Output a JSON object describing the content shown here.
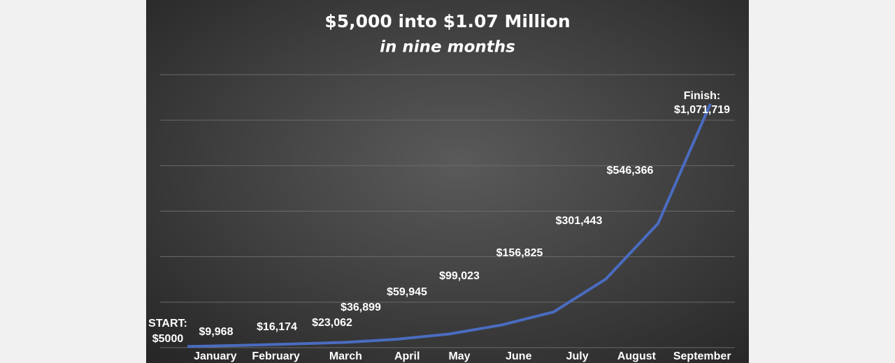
{
  "chart_data": {
    "type": "line",
    "title": "$5,000 into $1.07 Million",
    "subtitle": "in nine months",
    "categories": [
      null,
      "January",
      "February",
      "March",
      "April",
      "May",
      "June",
      "July",
      "August",
      "September",
      null
    ],
    "values": [
      5000,
      9968,
      16174,
      23062,
      36899,
      59945,
      99023,
      156825,
      301443,
      546366,
      1071719
    ],
    "value_labels": [
      "$5000",
      "$9,968",
      "$16,174",
      "$23,062",
      "$36,899",
      "$59,945",
      "$99,023",
      "$156,825",
      "$301,443",
      "$546,366",
      "$1,071,719"
    ],
    "start_label": "START:",
    "finish_label": "Finish:",
    "color": "#4a6cc0",
    "ylim": [
      0,
      1200000
    ],
    "yticks": [
      0,
      200000,
      400000,
      600000,
      800000,
      1000000,
      1200000
    ],
    "grid": true
  }
}
